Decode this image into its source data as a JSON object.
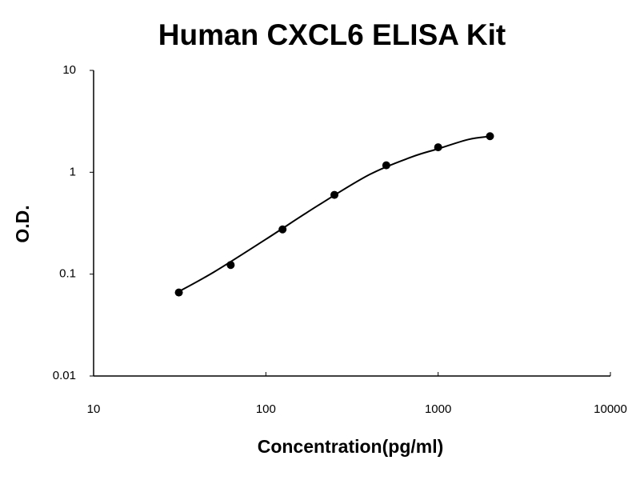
{
  "chart_data": {
    "type": "scatter",
    "title": "Human CXCL6 ELISA Kit",
    "x_label": "Concentration(pg/ml)",
    "y_label": "O.D.",
    "xscale": "log",
    "yscale": "log",
    "xlim": [
      10,
      10000
    ],
    "ylim": [
      0.01,
      10
    ],
    "xticks": [
      10,
      100,
      1000,
      10000
    ],
    "yticks": [
      0.01,
      0.1,
      1,
      10
    ],
    "series": [
      {
        "style": "points",
        "color": "#000000",
        "x": [
          31.25,
          62.5,
          125,
          250,
          500,
          1000,
          2000
        ],
        "values": [
          0.066,
          0.123,
          0.275,
          0.6,
          1.17,
          1.76,
          2.26
        ]
      },
      {
        "style": "line",
        "color": "#000000",
        "x": [
          30,
          50,
          100,
          200,
          400,
          700,
          1000,
          1500,
          2000
        ],
        "values": [
          0.065,
          0.105,
          0.22,
          0.47,
          0.95,
          1.41,
          1.7,
          2.1,
          2.25
        ]
      }
    ]
  }
}
